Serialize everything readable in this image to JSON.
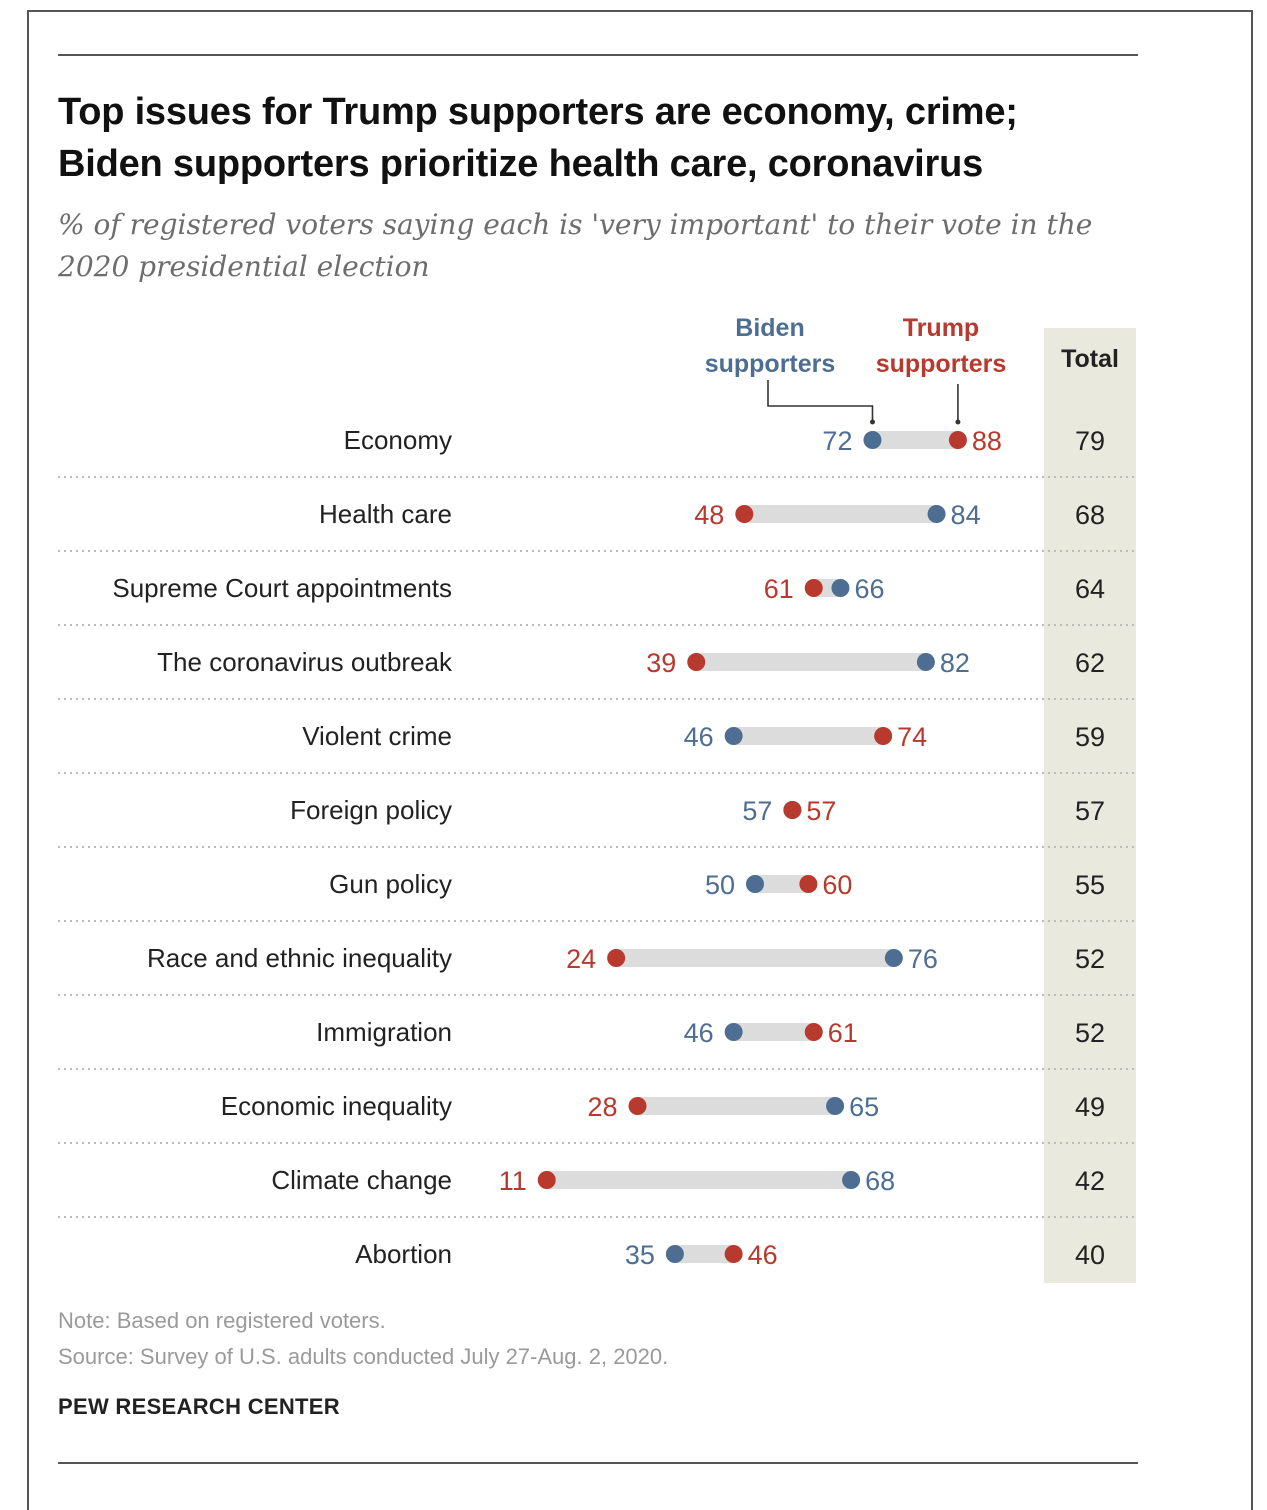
{
  "header": {
    "title_line1": "Top issues for Trump supporters are economy, crime;",
    "title_line2": "Biden supporters prioritize health care, coronavirus",
    "subtitle_line1": "% of registered voters saying each is 'very important' to their vote in the",
    "subtitle_line2": "2020 presidential election"
  },
  "legend": {
    "biden_line1": "Biden",
    "biden_line2": "supporters",
    "trump_line1": "Trump",
    "trump_line2": "supporters",
    "total": "Total"
  },
  "colors": {
    "biden": "#4d6e92",
    "trump": "#b8392d",
    "bar": "#dcdcdc",
    "total_band": "#e9e9dd",
    "divider": "#bbbbbb"
  },
  "chart_data": {
    "type": "dot-range",
    "xlim": [
      0,
      100
    ],
    "series": [
      {
        "name": "Biden supporters",
        "values": [
          72,
          84,
          66,
          82,
          46,
          57,
          50,
          76,
          46,
          65,
          68,
          35
        ]
      },
      {
        "name": "Trump supporters",
        "values": [
          88,
          48,
          61,
          39,
          74,
          57,
          60,
          24,
          61,
          28,
          11,
          46
        ]
      },
      {
        "name": "Total",
        "values": [
          79,
          68,
          64,
          62,
          59,
          57,
          55,
          52,
          52,
          49,
          42,
          40
        ]
      }
    ],
    "categories": [
      "Economy",
      "Health care",
      "Supreme Court appointments",
      "The coronavirus outbreak",
      "Violent crime",
      "Foreign policy",
      "Gun policy",
      "Race and ethnic inequality",
      "Immigration",
      "Economic inequality",
      "Climate change",
      "Abortion"
    ]
  },
  "footer": {
    "note": "Note: Based on registered voters.",
    "source": "Source: Survey of U.S. adults conducted July 27-Aug. 2, 2020.",
    "brand": "PEW RESEARCH CENTER"
  }
}
